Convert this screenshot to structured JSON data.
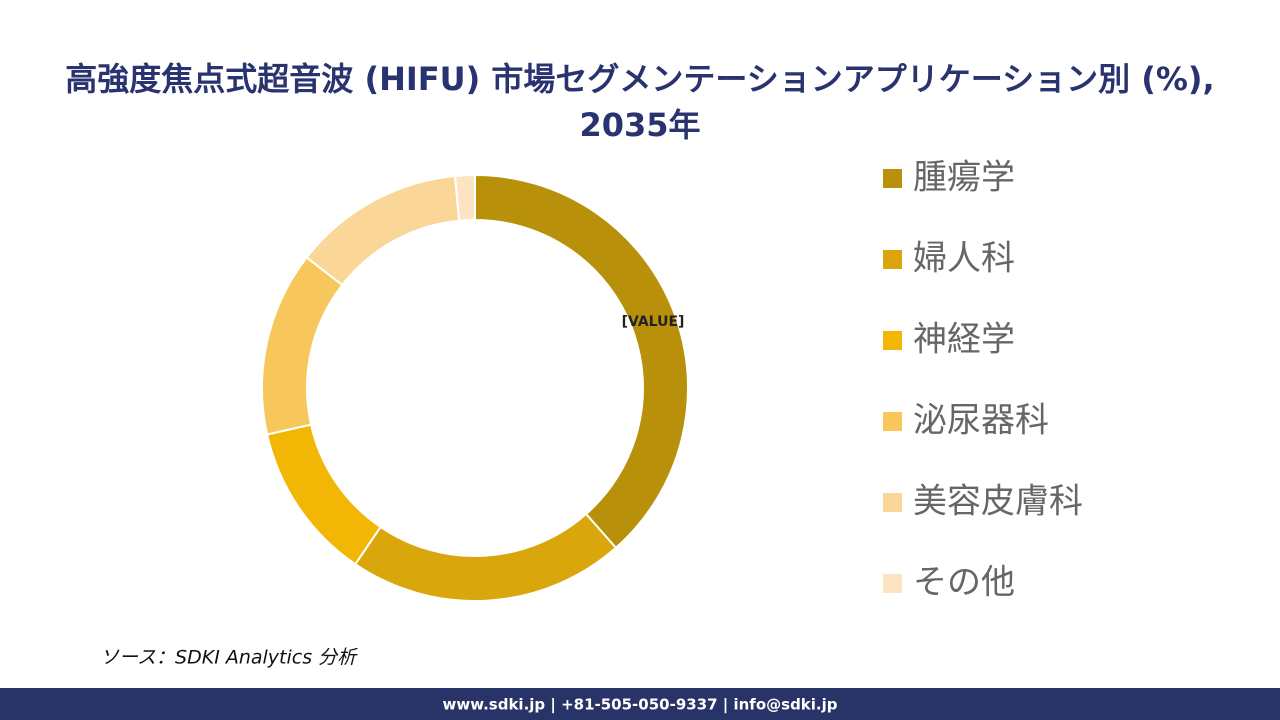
{
  "chart_data": {
    "type": "donut",
    "title": "高強度焦点式超音波 (HIFU) 市場セグメンテーションアプリケーション別 (%), 2035年",
    "categories": [
      "腫瘍学",
      "婦人科",
      "神経学",
      "泌尿器科",
      "美容皮膚科",
      "その他"
    ],
    "values": [
      38.5,
      21,
      12,
      14,
      13,
      1.5
    ],
    "colors": [
      "#B8900A",
      "#D9A60B",
      "#F2B705",
      "#F7C75B",
      "#FAD699",
      "#FCE4C3"
    ],
    "annotation": "[VALUE]",
    "legend": "right"
  },
  "source": "ソース：SDKI Analytics 分析",
  "footer": "www.sdki.jp | +81-505-050-9337 | info@sdki.jp"
}
